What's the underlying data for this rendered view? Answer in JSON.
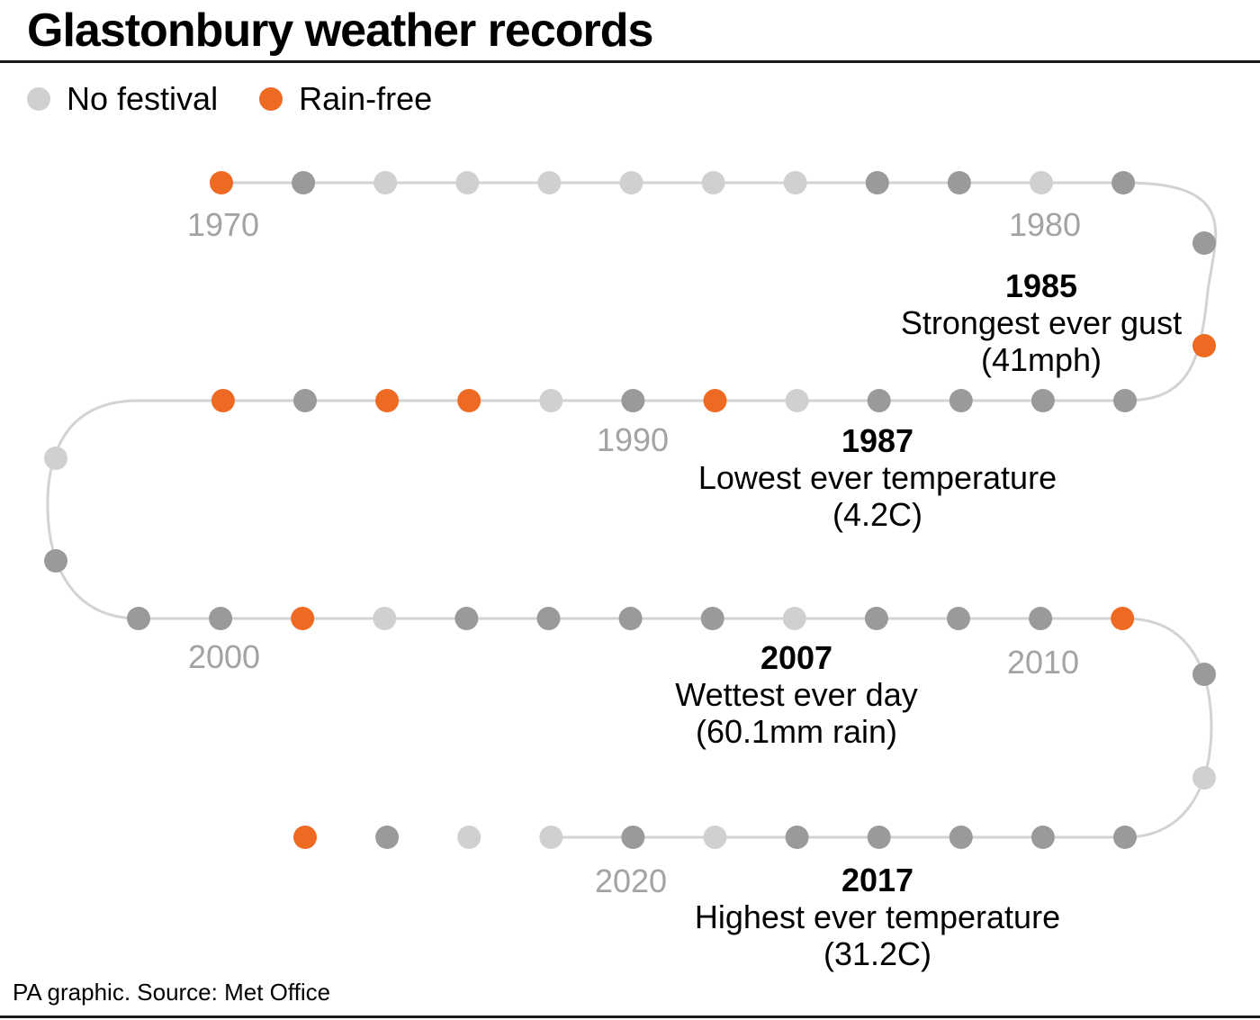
{
  "title": "Glastonbury weather records",
  "legend": [
    {
      "label": "No festival",
      "status": "none"
    },
    {
      "label": "Rain-free",
      "status": "rainfree"
    }
  ],
  "colors": {
    "none": "#d0d0d0",
    "held": "#9a9a9a",
    "rainfree": "#ee6a22",
    "line": "#d3d3d3",
    "decade_label": "#a3a3a3",
    "text": "#000000"
  },
  "chart_data": {
    "type": "scatter",
    "x_start": 1970,
    "x_end": 2023,
    "years": [
      {
        "year": 1970,
        "status": "rainfree"
      },
      {
        "year": 1971,
        "status": "held"
      },
      {
        "year": 1972,
        "status": "none"
      },
      {
        "year": 1973,
        "status": "none"
      },
      {
        "year": 1974,
        "status": "none"
      },
      {
        "year": 1975,
        "status": "none"
      },
      {
        "year": 1976,
        "status": "none"
      },
      {
        "year": 1977,
        "status": "none"
      },
      {
        "year": 1978,
        "status": "held"
      },
      {
        "year": 1979,
        "status": "held"
      },
      {
        "year": 1980,
        "status": "none"
      },
      {
        "year": 1981,
        "status": "held"
      },
      {
        "year": 1982,
        "status": "held"
      },
      {
        "year": 1983,
        "status": "rainfree"
      },
      {
        "year": 1984,
        "status": "held"
      },
      {
        "year": 1985,
        "status": "held"
      },
      {
        "year": 1986,
        "status": "held"
      },
      {
        "year": 1987,
        "status": "held"
      },
      {
        "year": 1988,
        "status": "none"
      },
      {
        "year": 1989,
        "status": "rainfree"
      },
      {
        "year": 1990,
        "status": "held"
      },
      {
        "year": 1991,
        "status": "none"
      },
      {
        "year": 1992,
        "status": "rainfree"
      },
      {
        "year": 1993,
        "status": "rainfree"
      },
      {
        "year": 1994,
        "status": "held"
      },
      {
        "year": 1995,
        "status": "rainfree"
      },
      {
        "year": 1996,
        "status": "none"
      },
      {
        "year": 1997,
        "status": "held"
      },
      {
        "year": 1998,
        "status": "held"
      },
      {
        "year": 1999,
        "status": "held"
      },
      {
        "year": 2000,
        "status": "rainfree"
      },
      {
        "year": 2001,
        "status": "none"
      },
      {
        "year": 2002,
        "status": "held"
      },
      {
        "year": 2003,
        "status": "held"
      },
      {
        "year": 2004,
        "status": "held"
      },
      {
        "year": 2005,
        "status": "held"
      },
      {
        "year": 2006,
        "status": "none"
      },
      {
        "year": 2007,
        "status": "held"
      },
      {
        "year": 2008,
        "status": "held"
      },
      {
        "year": 2009,
        "status": "held"
      },
      {
        "year": 2010,
        "status": "rainfree"
      },
      {
        "year": 2011,
        "status": "held"
      },
      {
        "year": 2012,
        "status": "none"
      },
      {
        "year": 2013,
        "status": "held"
      },
      {
        "year": 2014,
        "status": "held"
      },
      {
        "year": 2015,
        "status": "held"
      },
      {
        "year": 2016,
        "status": "held"
      },
      {
        "year": 2017,
        "status": "held"
      },
      {
        "year": 2018,
        "status": "none"
      },
      {
        "year": 2019,
        "status": "held"
      },
      {
        "year": 2020,
        "status": "none"
      },
      {
        "year": 2021,
        "status": "none"
      },
      {
        "year": 2022,
        "status": "held"
      },
      {
        "year": 2023,
        "status": "rainfree"
      }
    ],
    "decade_labels": [
      "1970",
      "1980",
      "1990",
      "2000",
      "2010",
      "2020"
    ],
    "annotations": [
      {
        "year": "1985",
        "lines": [
          "Strongest ever gust",
          "(41mph)"
        ]
      },
      {
        "year": "1987",
        "lines": [
          "Lowest ever temperature",
          "(4.2C)"
        ]
      },
      {
        "year": "2007",
        "lines": [
          "Wettest ever day",
          "(60.1mm rain)"
        ]
      },
      {
        "year": "2017",
        "lines": [
          "Highest ever temperature",
          "(31.2C)"
        ]
      }
    ]
  },
  "source": "PA graphic. Source: Met Office"
}
